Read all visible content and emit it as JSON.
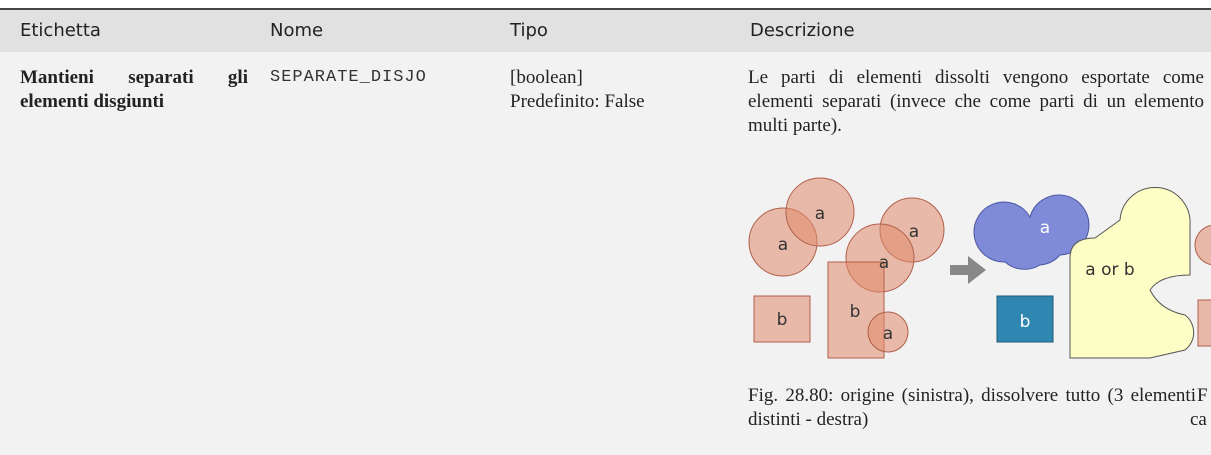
{
  "table": {
    "headers": [
      "Etichetta",
      "Nome",
      "Tipo",
      "Descrizione"
    ],
    "rows": [
      {
        "label": "Mantieni separati gli elementi disgiunti",
        "name": "SEPARATE_DISJO",
        "type": "[boolean]",
        "default": "Predefinito: False",
        "description": "Le parti di elementi dissolti vengono esportate come elementi separati (invece che come parti di un elemento multi parte)."
      }
    ]
  },
  "figure": {
    "labels": [
      "a",
      "a",
      "a",
      "a",
      "b",
      "b",
      "a",
      "a",
      "b",
      "a or b"
    ],
    "caption": "Fig. 28.80: origine (sinistra), dissolvere tutto (3 elementi distinti - destra)",
    "clipped_caption": [
      "F",
      "ca"
    ]
  }
}
